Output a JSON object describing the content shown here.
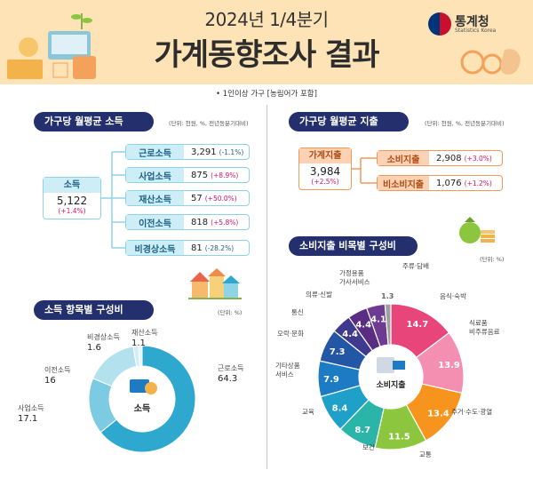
{
  "header": {
    "title_small": "2024년 1/4분기",
    "title_main": "가계동향조사 결과",
    "note": "• 1인이상 가구 [농림어가 포함]"
  },
  "logo": {
    "name": "통계청",
    "sub": "Statistics Korea"
  },
  "income": {
    "title": "가구당 월평균 소득",
    "unit": "(단위: 천원, %, 전년동분기대비)",
    "total": {
      "label": "소득",
      "value": "5,122",
      "change": "(+1.4%)"
    },
    "items": [
      {
        "label": "근로소득",
        "value": "3,291",
        "change": "(-1.1%)",
        "sign": "neg"
      },
      {
        "label": "사업소득",
        "value": "875",
        "change": "(+8.9%)",
        "sign": "pos"
      },
      {
        "label": "재산소득",
        "value": "57",
        "change": "(+50.0%)",
        "sign": "pos"
      },
      {
        "label": "이전소득",
        "value": "818",
        "change": "(+5.8%)",
        "sign": "pos"
      },
      {
        "label": "비경상소득",
        "value": "81",
        "change": "(-28.2%)",
        "sign": "neg"
      }
    ]
  },
  "spending": {
    "title": "가구당 월평균 지출",
    "unit": "(단위: 천원, %, 전년동분기대비)",
    "total": {
      "label": "가계지출",
      "value": "3,984",
      "change": "(+2.5%)"
    },
    "items": [
      {
        "label": "소비지출",
        "value": "2,908",
        "change": "(+3.0%)"
      },
      {
        "label": "비소비지출",
        "value": "1,076",
        "change": "(+1.2%)"
      }
    ]
  },
  "income_comp": {
    "title": "소득 항목별 구성비",
    "unit": "(단위: %)",
    "center": "소득"
  },
  "cons_comp": {
    "title": "소비지출 비목별 구성비",
    "unit": "(단위: %)",
    "center": "소비지출"
  },
  "chart_data": [
    {
      "type": "pie",
      "title": "소득 항목별 구성비",
      "categories": [
        "근로소득",
        "사업소득",
        "이전소득",
        "비경상소득",
        "재산소득"
      ],
      "values": [
        64.3,
        17.1,
        16.0,
        1.6,
        1.1
      ],
      "colors": [
        "#2fa8d0",
        "#7ccbe2",
        "#b3e1ee",
        "#d3eef6",
        "#e7f6fa"
      ]
    },
    {
      "type": "pie",
      "title": "소비지출 비목별 구성비",
      "categories": [
        "음식·숙박",
        "식료품 비주류음료",
        "주거·수도·광열",
        "교통",
        "보건",
        "교육",
        "기타상품 서비스",
        "오락·문화",
        "통신",
        "의류·신발",
        "가정용품 가사서비스",
        "주류·담배"
      ],
      "values": [
        14.7,
        13.9,
        13.4,
        11.5,
        8.7,
        8.4,
        7.9,
        7.3,
        4.4,
        4.4,
        4.1,
        1.3
      ],
      "colors": [
        "#e8457a",
        "#f48fb1",
        "#f7941d",
        "#8cc63f",
        "#2bb5a8",
        "#1fa0c8",
        "#1d7bc4",
        "#2456a6",
        "#3f3a8e",
        "#5a2d82",
        "#6d3b91",
        "#9e9e9e"
      ]
    }
  ]
}
